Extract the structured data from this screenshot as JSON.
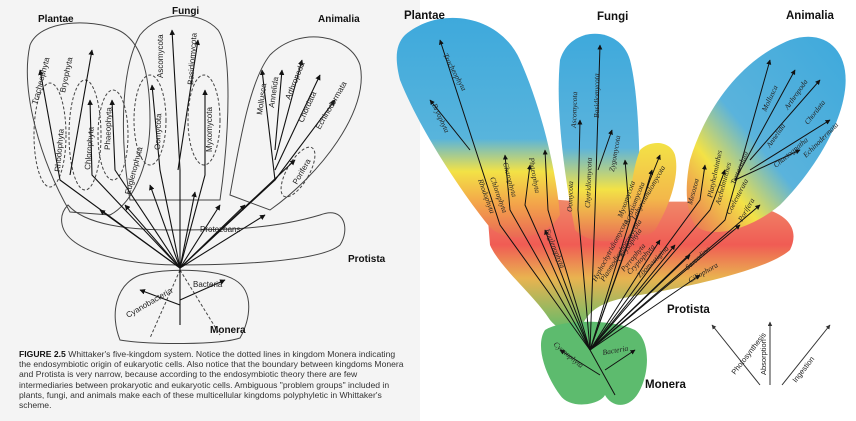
{
  "left": {
    "kingdoms": {
      "plantae": "Plantae",
      "fungi": "Fungi",
      "animalia": "Animalia",
      "protista": "Protista",
      "monera": "Monera"
    },
    "groups": {
      "tracheophyta": "Tracheophyta",
      "bryophyta": "Bryophyta",
      "rhodophyta": "Rhodophyta",
      "chlorophyta": "Chlorophyta",
      "phaeophyta": "Phaeophyta",
      "euglenophyta": "Euglenophyta",
      "ascomycota": "Ascomycota",
      "basidiomycota": "Basidiomycota",
      "oomycota": "Oomycota",
      "myxomycota": "Myxomycota",
      "mollusca": "Mollusca",
      "annelida": "Annelida",
      "arthropoda": "Arthropoda",
      "chordata": "Chordata",
      "echinodermata": "Echinodermata",
      "porifera": "Porifera",
      "protozoans": "Protozoans",
      "bacteria": "Bacteria",
      "cyanobacteria": "Cyanobacteria"
    },
    "caption": {
      "label": "FIGURE 2.5",
      "text": "Whittaker's five-kingdom system. Notice the dotted lines in kingdom Monera indicating the endosymbiotic origin of eukaryotic cells. Also notice that the boundary between kingdoms Monera and Protista is very narrow, because according to the endosymbiotic theory there are few intermediaries between prokaryotic and eukaryotic cells. Ambiguous \"problem groups\" included in plants, fungi, and animals make each of these multicellular kingdoms polyphyletic in Whittaker's scheme."
    }
  },
  "right": {
    "kingdoms": {
      "plantae": "Plantae",
      "fungi": "Fungi",
      "animalia": "Animalia",
      "protista": "Protista",
      "monera": "Monera"
    },
    "groups": {
      "tracheophyta": "Tracheophyta",
      "bryophyta": "Bryophyta",
      "charophyta": "Charophyta",
      "phaeophyta": "Phaeophyta",
      "chlorophyta": "Chlorophyta",
      "rhodophyta": "Rhodophyta",
      "ascomycota": "Ascomycota",
      "basidiomycota": "Basidiomycota",
      "oomycota": "Oomycota",
      "chytridiomycota": "Chytridiomycota",
      "zygomycota": "Zygomycota",
      "myxomycota": "Myxomycota",
      "acrasiomycota": "Acrasiomycota",
      "labyrinthulomycota": "Labyrinthulomycota",
      "euglenophyta": "Euglenophyta",
      "hyphochytridiomycota": "Hyphochytridiomycota",
      "plasmodiophoromycota": "Plasmodiophoromycota",
      "chrysophyta": "Chrysophyta",
      "pyrrophyta": "Pyrrophyta",
      "cryptophyta": "Cryptophyta",
      "zoomastigina": "Zoomastigina",
      "sarcodina": "Sarcodina",
      "ciliophora": "Ciliophora",
      "mesozoa": "Mesozoa",
      "platyhelminthes": "Platyhelminthes",
      "aschelminthes": "Aschelminthes",
      "tentaculata": "Tentaculata",
      "coelenterata": "Coelenterata",
      "porifera": "Porifera",
      "mollusca": "Mollusca",
      "arthropoda": "Arthropoda",
      "annelida": "Annelida",
      "chordata": "Chordata",
      "chaetognatha": "Chaetognatha",
      "echinodermata": "Echinodermata",
      "cyanophyta": "Cyanophyta",
      "bacteria": "Bacteria"
    },
    "legend": {
      "photosynthesis": "Photosynthesis",
      "absorption": "Absorption",
      "ingestion": "Ingestion"
    }
  },
  "colors": {
    "blue": "#3ea9dc",
    "yellow": "#f3e246",
    "red": "#ea6a55",
    "green": "#4cb773",
    "monera_green": "#56b86d"
  }
}
